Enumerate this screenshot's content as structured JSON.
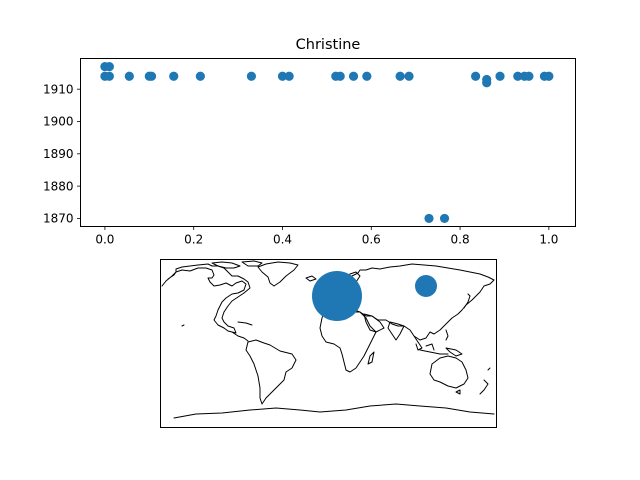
{
  "chart_data": [
    {
      "type": "scatter",
      "title": "Christine",
      "xlabel": "",
      "ylabel": "",
      "xlim": [
        -0.055,
        1.06
      ],
      "ylim": [
        1867.5,
        1919.5
      ],
      "x_ticks": [
        0.0,
        0.2,
        0.4,
        0.6,
        0.8,
        1.0
      ],
      "x_tick_labels": [
        "0.0",
        "0.2",
        "0.4",
        "0.6",
        "0.8",
        "1.0"
      ],
      "y_ticks": [
        1870,
        1880,
        1890,
        1900,
        1910
      ],
      "y_tick_labels": [
        "1870",
        "1880",
        "1890",
        "1900",
        "1910"
      ],
      "grid": false,
      "color": "#1f77b4",
      "points": [
        {
          "x": 0.0,
          "y": 1917
        },
        {
          "x": 0.01,
          "y": 1917
        },
        {
          "x": 0.0,
          "y": 1914
        },
        {
          "x": 0.01,
          "y": 1914
        },
        {
          "x": 0.055,
          "y": 1914
        },
        {
          "x": 0.1,
          "y": 1914
        },
        {
          "x": 0.105,
          "y": 1914
        },
        {
          "x": 0.155,
          "y": 1914
        },
        {
          "x": 0.215,
          "y": 1914
        },
        {
          "x": 0.33,
          "y": 1914
        },
        {
          "x": 0.4,
          "y": 1914
        },
        {
          "x": 0.415,
          "y": 1914
        },
        {
          "x": 0.52,
          "y": 1914
        },
        {
          "x": 0.53,
          "y": 1914
        },
        {
          "x": 0.56,
          "y": 1914
        },
        {
          "x": 0.59,
          "y": 1914
        },
        {
          "x": 0.665,
          "y": 1914
        },
        {
          "x": 0.685,
          "y": 1914
        },
        {
          "x": 0.835,
          "y": 1914
        },
        {
          "x": 0.86,
          "y": 1913
        },
        {
          "x": 0.86,
          "y": 1912
        },
        {
          "x": 0.89,
          "y": 1914
        },
        {
          "x": 0.93,
          "y": 1914
        },
        {
          "x": 0.945,
          "y": 1914
        },
        {
          "x": 0.955,
          "y": 1914
        },
        {
          "x": 0.99,
          "y": 1914
        },
        {
          "x": 1.0,
          "y": 1914
        },
        {
          "x": 0.73,
          "y": 1870
        },
        {
          "x": 0.765,
          "y": 1870
        }
      ]
    },
    {
      "type": "map",
      "projection": "plate-carree",
      "lon_range": [
        -180,
        180
      ],
      "lat_range": [
        -90,
        90
      ],
      "marker_color": "#1f77b4",
      "markers": [
        {
          "lon": 12,
          "lat": 49,
          "size": "large"
        },
        {
          "lon": 106,
          "lat": 56,
          "size": "small"
        }
      ]
    }
  ]
}
